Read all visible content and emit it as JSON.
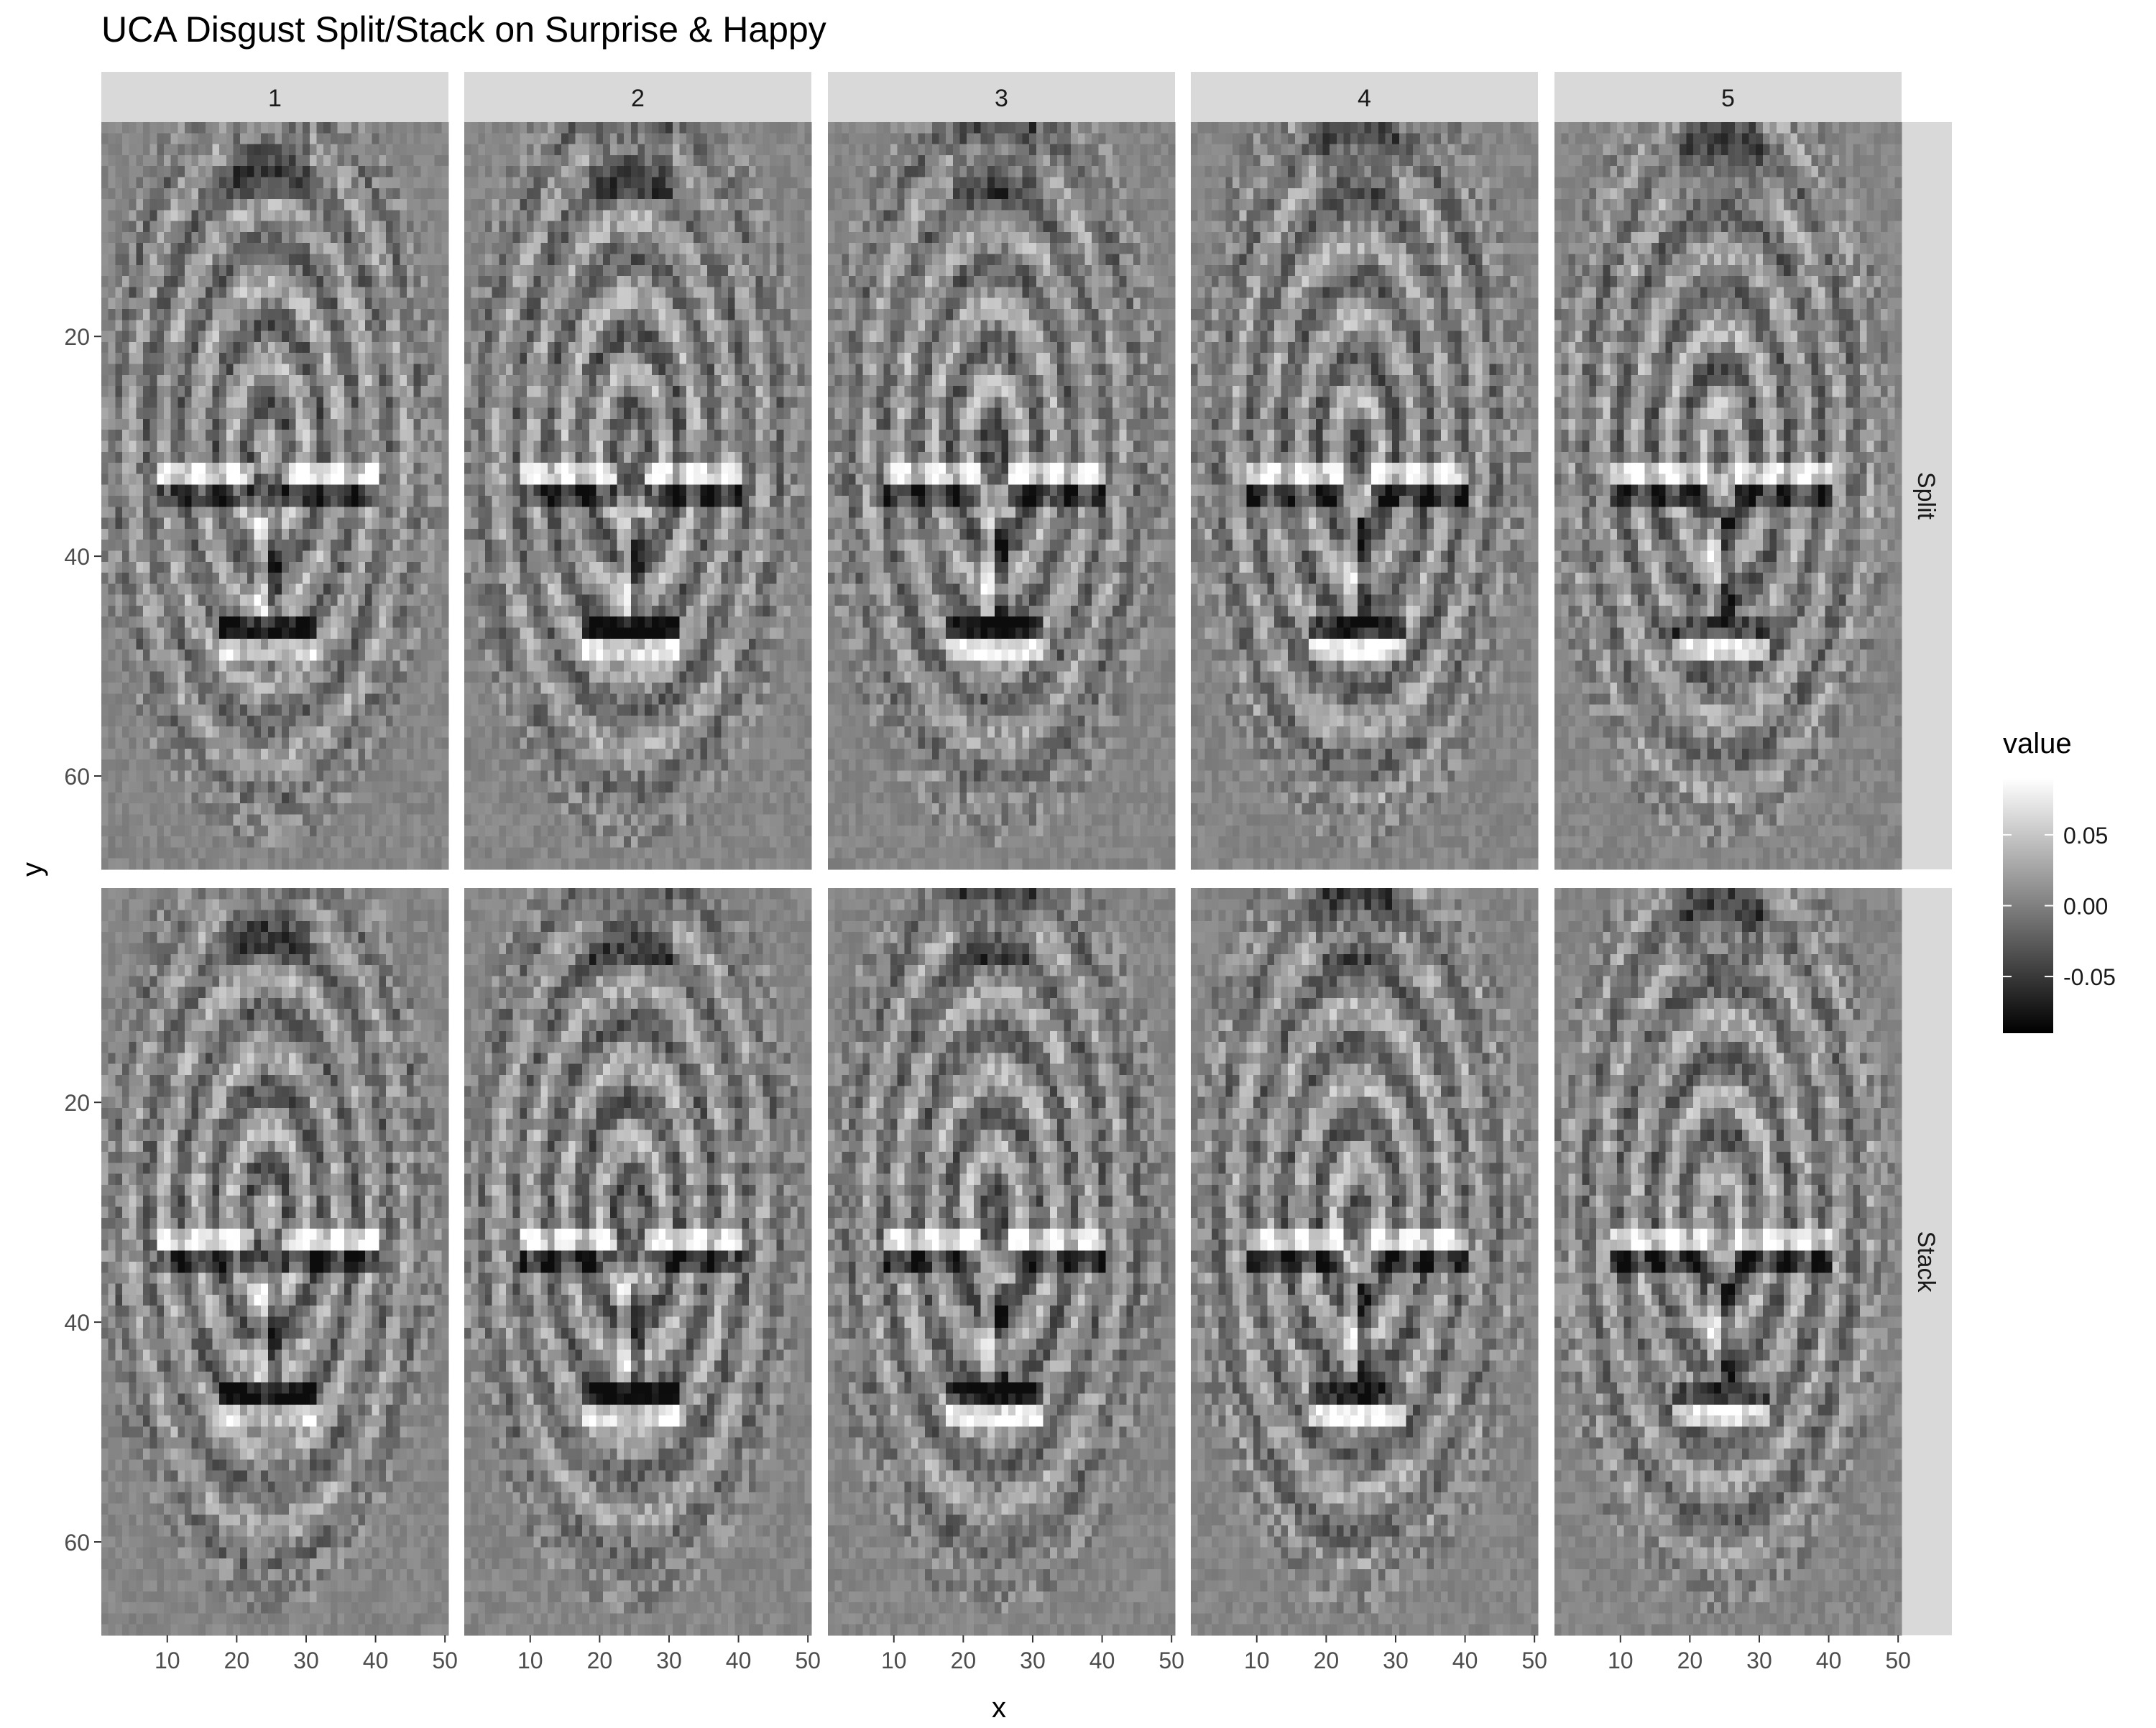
{
  "chart_data": {
    "type": "heatmap",
    "title": "UCA Disgust Split/Stack on Surprise & Happy",
    "xlabel": "x",
    "ylabel": "y",
    "x_range": [
      1,
      50
    ],
    "y_range": [
      1,
      68
    ],
    "y_reversed": true,
    "x_ticks": [
      10,
      20,
      30,
      40,
      50
    ],
    "y_ticks": [
      20,
      40,
      60
    ],
    "column_facets": [
      "1",
      "2",
      "3",
      "4",
      "5"
    ],
    "row_facets": [
      "Split",
      "Stack"
    ],
    "legend": {
      "title": "value",
      "placement": "right",
      "range": [
        -0.09,
        0.09
      ],
      "breaks": [
        0.05,
        0.0,
        -0.05
      ],
      "break_labels": [
        "0.05",
        "0.00",
        "-0.05"
      ],
      "low_color": "#000000",
      "high_color": "#ffffff"
    },
    "cell_grid": {
      "cols": 50,
      "rows": 68
    },
    "panel_background": "#808080",
    "strip_background": "#d9d9d9",
    "grid": false
  }
}
